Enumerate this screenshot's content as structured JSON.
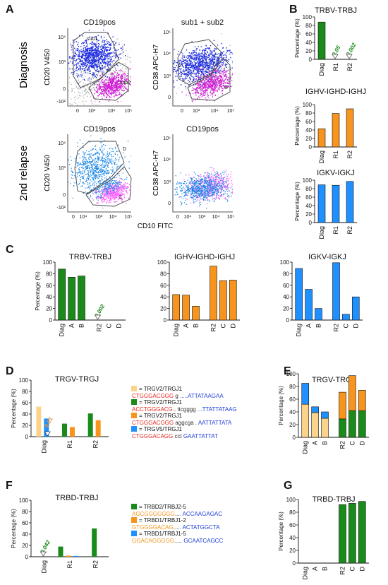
{
  "panel_labels": [
    "A",
    "B",
    "C",
    "D",
    "E",
    "F",
    "G"
  ],
  "colors": {
    "green": "#1a8a1a",
    "orange": "#f7941d",
    "blue": "#1e90ff",
    "pale": "#fbd38a",
    "red": "#e8251c",
    "seqblue": "#1f3fd6",
    "flow_blue": "#1f2fe0",
    "flow_magenta": "#d21bd6",
    "flow_light_blue": "#1e88e5",
    "flow_pink": "#ff66ff"
  },
  "panelA": {
    "row_labels": [
      "Diagnosis",
      "2nd relapse"
    ],
    "plot_titles": [
      "CD19pos",
      "sub1 + sub2",
      "CD19pos",
      "CD19pos"
    ],
    "y_labels": [
      "CD20 V450",
      "CD38 APC-H7",
      "CD20 V450",
      "CD38 APC-H7"
    ],
    "x_label": "CD10 FITC",
    "gate_labels": [
      "sub1",
      "sub2",
      "A",
      "B",
      "D",
      "C"
    ],
    "ticks_y_diag": [
      "10⁴",
      "10³",
      "0",
      "-10²"
    ],
    "ticks_y_cd38": [
      "10⁵",
      "10⁴",
      "10³",
      "0"
    ],
    "ticks_x": [
      "0",
      "10³",
      "10⁴",
      "10⁵"
    ],
    "ticks_x_relapse": [
      "0",
      "10⁴",
      "10³",
      "10⁴",
      "10⁵"
    ]
  },
  "chart_data": [
    {
      "id": "B1",
      "type": "bar",
      "title": "TRBV-TRBJ",
      "ylabel": "Percentage (%)",
      "categories": [
        "Diag",
        "R1",
        "R2"
      ],
      "ylim": [
        0,
        100
      ],
      "yticks": [
        0,
        20,
        40,
        60,
        80,
        100
      ],
      "values": [
        88,
        0.05,
        0.002
      ],
      "annotations": [
        "0.05",
        "0.002"
      ]
    },
    {
      "id": "B2",
      "type": "bar",
      "title": "IGHV-IGHD-IGHJ",
      "ylabel": "Percentage (%)",
      "categories": [
        "Diag",
        "R1",
        "R2"
      ],
      "ylim": [
        0,
        100
      ],
      "yticks": [
        0,
        20,
        40,
        60,
        80,
        100
      ],
      "values": [
        43,
        79,
        90
      ]
    },
    {
      "id": "B3",
      "type": "bar",
      "title": "IGKV-IGKJ",
      "ylabel": "Percentage (%)",
      "categories": [
        "Diag",
        "R1",
        "R2"
      ],
      "ylim": [
        0,
        100
      ],
      "yticks": [
        0,
        20,
        40,
        60,
        80,
        100
      ],
      "values": [
        89,
        88,
        97
      ]
    },
    {
      "id": "C1",
      "type": "bar",
      "title": "TRBV-TRBJ",
      "ylabel": "Percentage (%)",
      "categories": [
        "Diag",
        "A",
        "B",
        "R2",
        "C",
        "D"
      ],
      "ylim": [
        0,
        100
      ],
      "yticks": [
        0,
        20,
        40,
        60,
        80,
        100
      ],
      "values": [
        88,
        74,
        76,
        0.002,
        0,
        0
      ],
      "annotations": [
        "0.002"
      ]
    },
    {
      "id": "C2",
      "type": "bar",
      "title": "IGHV-IGHD-IGHJ",
      "ylabel": "",
      "categories": [
        "Diag",
        "A",
        "B",
        "R2",
        "C",
        "D"
      ],
      "ylim": [
        0,
        100
      ],
      "yticks": [
        0,
        20,
        40,
        60,
        80,
        100
      ],
      "values": [
        44,
        43,
        24,
        93,
        68,
        69
      ]
    },
    {
      "id": "C3",
      "type": "bar",
      "title": "IGKV-IGKJ",
      "ylabel": "",
      "categories": [
        "Diag",
        "A",
        "B",
        "R2",
        "C",
        "D"
      ],
      "ylim": [
        0,
        100
      ],
      "yticks": [
        0,
        20,
        40,
        60,
        80,
        100
      ],
      "values": [
        89,
        53,
        20,
        99,
        10,
        40
      ]
    },
    {
      "id": "D",
      "type": "bar",
      "title": "TRGV-TRGJ",
      "ylabel": "Percentage (%)",
      "categories": [
        "Diag",
        "R1",
        "R2"
      ],
      "ylim": [
        0,
        100
      ],
      "yticks": [
        0,
        20,
        40,
        60,
        80,
        100
      ],
      "series": [
        {
          "values": [
            53,
            0,
            0
          ]
        },
        {
          "values": [
            0,
            23,
            41
          ]
        },
        {
          "values": [
            0.01,
            17,
            29
          ]
        },
        {
          "values": [
            32,
            0,
            0
          ]
        }
      ],
      "annotations": [
        "0.01"
      ]
    },
    {
      "id": "E",
      "type": "bar",
      "title": "TRGV-TRGJ",
      "ylabel": "Percentage (%)",
      "stacked": true,
      "categories": [
        "Diag",
        "A",
        "B",
        "R2",
        "C",
        "D"
      ],
      "ylim": [
        0,
        100
      ],
      "yticks": [
        0,
        20,
        40,
        60,
        80,
        100
      ],
      "series": [
        {
          "values": [
            52,
            39,
            30,
            0,
            0,
            0
          ]
        },
        {
          "values": [
            0,
            0,
            0,
            29,
            42,
            42
          ]
        },
        {
          "values": [
            0,
            0,
            0,
            42,
            55,
            32
          ]
        },
        {
          "values": [
            33,
            9,
            10,
            0,
            0,
            0
          ]
        }
      ]
    },
    {
      "id": "F",
      "type": "bar",
      "title": "TRBD-TRBJ",
      "ylabel": "Percentage (%)",
      "categories": [
        "Diag",
        "R1",
        "R2"
      ],
      "ylim": [
        0,
        100
      ],
      "yticks": [
        0,
        20,
        40,
        60,
        80,
        100
      ],
      "series": [
        {
          "values": [
            0.042,
            18,
            50
          ]
        },
        {
          "values": [
            0,
            2,
            0
          ]
        },
        {
          "values": [
            0,
            1.5,
            0
          ]
        }
      ],
      "annotations": [
        "0.042"
      ]
    },
    {
      "id": "G",
      "type": "bar",
      "title": "TRBD-TRBJ",
      "ylabel": "Percentage (%)",
      "categories": [
        "Diag",
        "A",
        "B",
        "R2",
        "C",
        "D"
      ],
      "ylim": [
        0,
        100
      ],
      "yticks": [
        0,
        20,
        40,
        60,
        80,
        100
      ],
      "values": [
        0,
        0,
        0,
        92,
        94,
        97
      ]
    }
  ],
  "legendD": [
    {
      "label": "= TRGV2/TRGJ1",
      "left": "CTGGGACGGG",
      "mid": " g ",
      "right": ".....ATTATAAGAA"
    },
    {
      "label": "= TRGV2/TRGJ1",
      "left": "ACCTGGGACG",
      "mid": ".. ttcgggg ",
      "right": "...TTATTATAAG"
    },
    {
      "label": "= TRGV2/TRGJ1",
      "left": "CTGGGACGGG",
      "mid": " aggcga . ",
      "right": " AATTATTATA"
    },
    {
      "label": "= TRGV5/TRGJ1",
      "left": "CTGGGACAGG",
      "mid": " cct ",
      "right": "GAATTATTAT"
    }
  ],
  "legendF": [
    {
      "label": "= TRBD2/TRBJ2-5",
      "left": "AGCGGGGGGG",
      "mid": ".... ",
      "right": "ACCAAGAGAC"
    },
    {
      "label": "= TRBD1/TRBJ1-2",
      "left": "GTGGGGACAG",
      "mid": "..... ",
      "right": "ACTATGGCTA"
    },
    {
      "label": "= TRBD1/TRBJ1-5",
      "left": "GGACAGGGGG",
      "mid": "..... ",
      "right": "GCAATCAGCC"
    }
  ]
}
